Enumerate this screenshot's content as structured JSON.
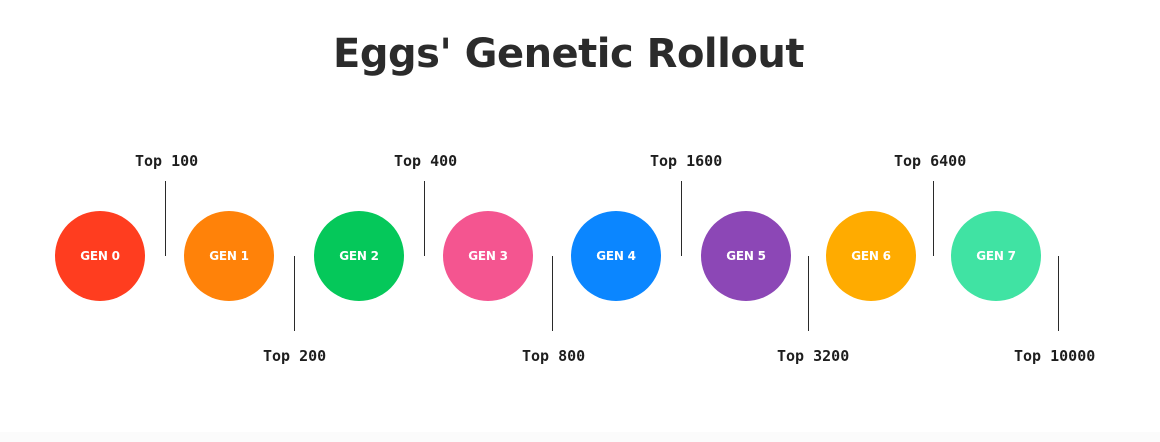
{
  "title": "Eggs' Genetic Rollout",
  "generations": [
    {
      "label": "GEN 0",
      "color": "#ff3d1f",
      "tier": "Top 100"
    },
    {
      "label": "GEN 1",
      "color": "#ff8209",
      "tier": "Top 200"
    },
    {
      "label": "GEN 2",
      "color": "#05c85a",
      "tier": "Top 400"
    },
    {
      "label": "GEN 3",
      "color": "#f45590",
      "tier": "Top 800"
    },
    {
      "label": "GEN 4",
      "color": "#0b86ff",
      "tier": "Top 1600"
    },
    {
      "label": "GEN 5",
      "color": "#8c47b6",
      "tier": "Top 3200"
    },
    {
      "label": "GEN 6",
      "color": "#ffab00",
      "tier": "Top 6400"
    },
    {
      "label": "GEN 7",
      "color": "#40e3a3",
      "tier": "Top 10000"
    }
  ]
}
